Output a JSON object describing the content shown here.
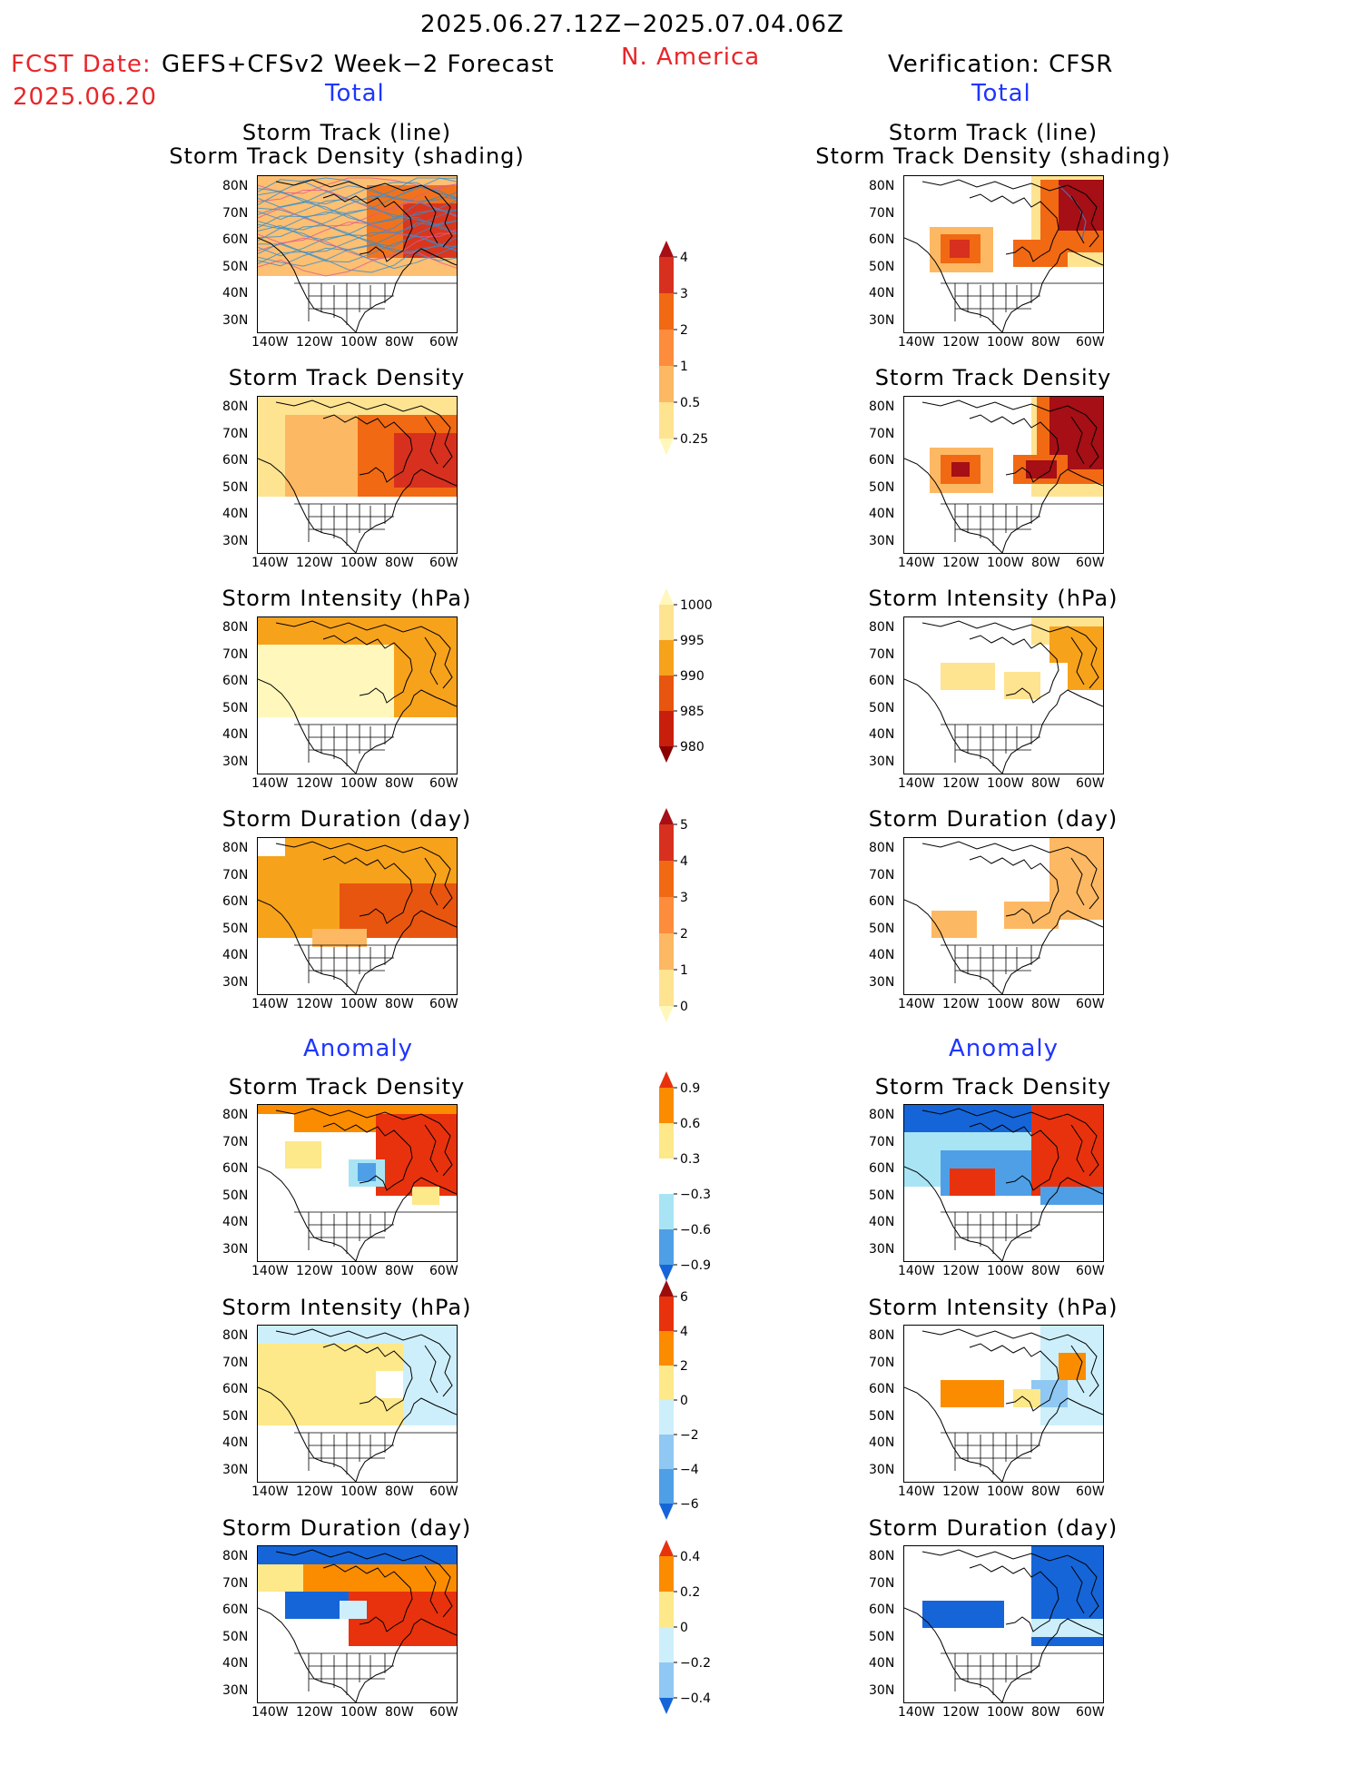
{
  "header": {
    "period": "2025.06.27.12Z−2025.07.04.06Z",
    "fcst_label": "FCST Date:",
    "fcst_date": "2025.06.20",
    "model": "GEFS+CFSv2 Week−2 Forecast",
    "region": "N. America",
    "verification": "Verification: CFSR"
  },
  "sections": {
    "total": "Total",
    "anomaly": "Anomaly"
  },
  "axis": {
    "lat": [
      "80N",
      "70N",
      "60N",
      "50N",
      "40N",
      "30N"
    ],
    "lon": [
      "140W",
      "120W",
      "100W",
      "80W",
      "60W"
    ]
  },
  "panel_titles": {
    "track_line": "Storm Track (line)",
    "track_shading": "Storm Track Density (shading)",
    "density": "Storm Track Density",
    "intensity": "Storm Intensity (hPa)",
    "duration": "Storm Duration (day)"
  },
  "colorbars": [
    {
      "id": "density_total",
      "labels": [
        "4",
        "3",
        "2",
        "1",
        "0.5",
        "0.25"
      ],
      "colors": [
        "#a50f15",
        "#d7301f",
        "#f16913",
        "#fd8d3c",
        "#fdb863",
        "#fee391",
        "#fff7bc"
      ]
    },
    {
      "id": "intensity_total",
      "labels": [
        "1000",
        "995",
        "990",
        "985",
        "980"
      ],
      "colors": [
        "#fff7bc",
        "#fee391",
        "#f7a21b",
        "#e8550f",
        "#c71f0c",
        "#8b0000"
      ]
    },
    {
      "id": "duration_total",
      "labels": [
        "5",
        "4",
        "3",
        "2",
        "1",
        "0"
      ],
      "colors": [
        "#a50f15",
        "#d7301f",
        "#f16913",
        "#fd8d3c",
        "#fdb863",
        "#fee391",
        "#fff7bc"
      ]
    },
    {
      "id": "density_anom",
      "labels": [
        "0.9",
        "0.6",
        "0.3",
        "−0.3",
        "−0.6",
        "−0.9"
      ],
      "colors": [
        "#e8320d",
        "#fb8c00",
        "#fde88a",
        "#ffffff",
        "#a8e4f4",
        "#4f9fe6",
        "#1565d8"
      ]
    },
    {
      "id": "intensity_anom",
      "labels": [
        "6",
        "4",
        "2",
        "0",
        "−2",
        "−4",
        "−6"
      ],
      "colors": [
        "#9b0d0d",
        "#e8320d",
        "#fb8c00",
        "#fde88a",
        "#cdeffb",
        "#8fc8f2",
        "#4f9fe6",
        "#1565d8"
      ]
    },
    {
      "id": "duration_anom",
      "labels": [
        "0.4",
        "0.2",
        "0",
        "−0.2",
        "−0.4"
      ],
      "colors": [
        "#e8320d",
        "#fb8c00",
        "#fde88a",
        "#cdeffb",
        "#8fc8f2",
        "#1565d8"
      ]
    }
  ],
  "legend": {
    "density_shading": "orange-red",
    "anomaly_positive": "#e8320d",
    "anomaly_negative": "#1565d8",
    "track_lines": "#2f8fd0"
  }
}
